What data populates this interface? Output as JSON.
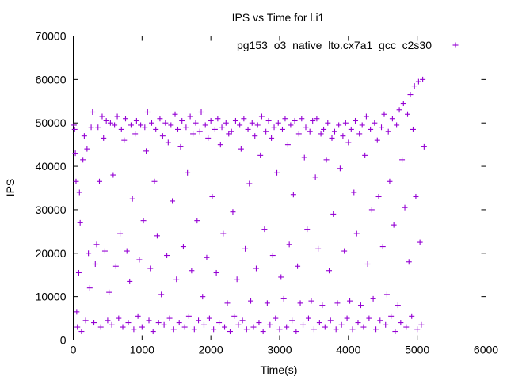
{
  "chart_data": {
    "type": "scatter",
    "title": "IPS vs Time for l.i1",
    "xlabel": "Time(s)",
    "ylabel": "IPS",
    "xlim": [
      0,
      6000
    ],
    "ylim": [
      0,
      70000
    ],
    "x_ticks": [
      "0",
      "1000",
      "2000",
      "3000",
      "4000",
      "5000",
      "6000"
    ],
    "y_ticks": [
      "0",
      "10000",
      "20000",
      "30000",
      "40000",
      "50000",
      "60000",
      "70000"
    ],
    "grid": false,
    "legend_position": "top-right",
    "marker": "+",
    "series": [
      {
        "name": "pg153_o3_native_lto.cx7a1_gcc_c2s30",
        "color": "#9400d3",
        "points": [
          [
            10,
            49500
          ],
          [
            20,
            48500
          ],
          [
            30,
            43000
          ],
          [
            40,
            36500
          ],
          [
            50,
            6500
          ],
          [
            60,
            3000
          ],
          [
            80,
            15500
          ],
          [
            90,
            34000
          ],
          [
            100,
            27000
          ],
          [
            120,
            2000
          ],
          [
            140,
            41500
          ],
          [
            160,
            47000
          ],
          [
            180,
            4500
          ],
          [
            200,
            44000
          ],
          [
            220,
            20000
          ],
          [
            240,
            12000
          ],
          [
            260,
            49000
          ],
          [
            280,
            52500
          ],
          [
            300,
            4000
          ],
          [
            320,
            17500
          ],
          [
            340,
            22000
          ],
          [
            360,
            49000
          ],
          [
            380,
            36500
          ],
          [
            400,
            3000
          ],
          [
            420,
            51500
          ],
          [
            440,
            46500
          ],
          [
            460,
            20500
          ],
          [
            480,
            50500
          ],
          [
            500,
            4500
          ],
          [
            520,
            11000
          ],
          [
            540,
            50000
          ],
          [
            560,
            3500
          ],
          [
            580,
            38000
          ],
          [
            600,
            49500
          ],
          [
            620,
            17000
          ],
          [
            640,
            51500
          ],
          [
            660,
            5000
          ],
          [
            680,
            24500
          ],
          [
            700,
            48500
          ],
          [
            720,
            3000
          ],
          [
            740,
            46000
          ],
          [
            760,
            51000
          ],
          [
            780,
            20500
          ],
          [
            800,
            4000
          ],
          [
            820,
            13500
          ],
          [
            840,
            49500
          ],
          [
            860,
            32500
          ],
          [
            880,
            2500
          ],
          [
            900,
            47500
          ],
          [
            920,
            50500
          ],
          [
            940,
            5500
          ],
          [
            960,
            18500
          ],
          [
            980,
            49500
          ],
          [
            1000,
            3000
          ],
          [
            1020,
            27500
          ],
          [
            1040,
            49000
          ],
          [
            1060,
            43500
          ],
          [
            1080,
            52500
          ],
          [
            1100,
            4500
          ],
          [
            1120,
            16500
          ],
          [
            1140,
            50000
          ],
          [
            1160,
            2000
          ],
          [
            1180,
            36500
          ],
          [
            1200,
            48500
          ],
          [
            1220,
            24000
          ],
          [
            1240,
            4000
          ],
          [
            1260,
            51000
          ],
          [
            1280,
            10500
          ],
          [
            1300,
            47000
          ],
          [
            1320,
            3500
          ],
          [
            1340,
            50000
          ],
          [
            1360,
            19500
          ],
          [
            1380,
            45500
          ],
          [
            1400,
            5000
          ],
          [
            1420,
            49500
          ],
          [
            1440,
            32000
          ],
          [
            1460,
            2500
          ],
          [
            1480,
            52000
          ],
          [
            1500,
            14000
          ],
          [
            1520,
            48500
          ],
          [
            1540,
            4000
          ],
          [
            1560,
            44500
          ],
          [
            1580,
            50500
          ],
          [
            1600,
            21500
          ],
          [
            1620,
            3000
          ],
          [
            1640,
            49000
          ],
          [
            1660,
            38500
          ],
          [
            1680,
            5500
          ],
          [
            1700,
            51500
          ],
          [
            1720,
            16000
          ],
          [
            1740,
            47500
          ],
          [
            1760,
            2500
          ],
          [
            1780,
            50000
          ],
          [
            1800,
            27500
          ],
          [
            1820,
            4500
          ],
          [
            1840,
            48000
          ],
          [
            1860,
            52500
          ],
          [
            1880,
            10000
          ],
          [
            1900,
            3500
          ],
          [
            1920,
            49500
          ],
          [
            1940,
            19000
          ],
          [
            1960,
            46500
          ],
          [
            1980,
            5000
          ],
          [
            2000,
            50500
          ],
          [
            2020,
            33000
          ],
          [
            2040,
            2500
          ],
          [
            2060,
            48500
          ],
          [
            2080,
            15500
          ],
          [
            2100,
            51000
          ],
          [
            2120,
            4000
          ],
          [
            2140,
            45000
          ],
          [
            2160,
            49000
          ],
          [
            2180,
            24500
          ],
          [
            2200,
            3000
          ],
          [
            2220,
            50000
          ],
          [
            2240,
            8500
          ],
          [
            2260,
            47500
          ],
          [
            2280,
            2000
          ],
          [
            2300,
            48000
          ],
          [
            2320,
            29500
          ],
          [
            2340,
            5500
          ],
          [
            2360,
            50500
          ],
          [
            2380,
            14000
          ],
          [
            2400,
            3500
          ],
          [
            2420,
            49500
          ],
          [
            2440,
            44000
          ],
          [
            2460,
            4500
          ],
          [
            2480,
            51000
          ],
          [
            2500,
            21000
          ],
          [
            2520,
            2500
          ],
          [
            2540,
            48500
          ],
          [
            2560,
            36000
          ],
          [
            2580,
            9000
          ],
          [
            2600,
            50000
          ],
          [
            2620,
            3000
          ],
          [
            2640,
            47000
          ],
          [
            2660,
            16500
          ],
          [
            2680,
            49500
          ],
          [
            2700,
            4000
          ],
          [
            2720,
            42500
          ],
          [
            2740,
            51500
          ],
          [
            2760,
            2000
          ],
          [
            2780,
            25500
          ],
          [
            2800,
            48000
          ],
          [
            2820,
            8500
          ],
          [
            2840,
            50500
          ],
          [
            2860,
            3500
          ],
          [
            2880,
            46500
          ],
          [
            2900,
            19500
          ],
          [
            2920,
            49000
          ],
          [
            2940,
            5000
          ],
          [
            2960,
            38500
          ],
          [
            2980,
            50000
          ],
          [
            3000,
            2500
          ],
          [
            3020,
            14500
          ],
          [
            3040,
            48500
          ],
          [
            3060,
            9500
          ],
          [
            3080,
            51000
          ],
          [
            3100,
            3000
          ],
          [
            3120,
            45000
          ],
          [
            3140,
            22000
          ],
          [
            3160,
            49500
          ],
          [
            3180,
            4500
          ],
          [
            3200,
            33500
          ],
          [
            3220,
            50500
          ],
          [
            3240,
            2000
          ],
          [
            3260,
            17000
          ],
          [
            3280,
            47500
          ],
          [
            3300,
            8500
          ],
          [
            3320,
            51000
          ],
          [
            3340,
            3500
          ],
          [
            3360,
            42000
          ],
          [
            3380,
            49000
          ],
          [
            3400,
            25500
          ],
          [
            3420,
            5000
          ],
          [
            3440,
            48000
          ],
          [
            3460,
            9000
          ],
          [
            3480,
            50500
          ],
          [
            3500,
            2500
          ],
          [
            3520,
            37500
          ],
          [
            3540,
            51000
          ],
          [
            3560,
            21000
          ],
          [
            3580,
            4000
          ],
          [
            3600,
            47500
          ],
          [
            3620,
            8000
          ],
          [
            3640,
            48500
          ],
          [
            3660,
            3000
          ],
          [
            3680,
            41500
          ],
          [
            3700,
            50000
          ],
          [
            3720,
            16000
          ],
          [
            3740,
            4500
          ],
          [
            3760,
            46500
          ],
          [
            3780,
            29000
          ],
          [
            3800,
            48000
          ],
          [
            3820,
            2500
          ],
          [
            3840,
            8500
          ],
          [
            3860,
            49500
          ],
          [
            3880,
            39500
          ],
          [
            3900,
            3500
          ],
          [
            3920,
            47000
          ],
          [
            3940,
            20500
          ],
          [
            3960,
            50000
          ],
          [
            3980,
            5000
          ],
          [
            4000,
            45500
          ],
          [
            4020,
            9000
          ],
          [
            4040,
            48500
          ],
          [
            4060,
            2500
          ],
          [
            4080,
            34000
          ],
          [
            4100,
            50500
          ],
          [
            4120,
            24500
          ],
          [
            4140,
            4000
          ],
          [
            4160,
            47500
          ],
          [
            4180,
            8000
          ],
          [
            4200,
            49500
          ],
          [
            4220,
            3000
          ],
          [
            4240,
            42500
          ],
          [
            4260,
            51500
          ],
          [
            4280,
            17500
          ],
          [
            4300,
            5000
          ],
          [
            4320,
            48500
          ],
          [
            4340,
            30000
          ],
          [
            4360,
            9500
          ],
          [
            4380,
            50000
          ],
          [
            4400,
            2500
          ],
          [
            4420,
            46000
          ],
          [
            4440,
            33000
          ],
          [
            4460,
            4500
          ],
          [
            4480,
            49000
          ],
          [
            4500,
            21500
          ],
          [
            4520,
            52000
          ],
          [
            4540,
            3500
          ],
          [
            4560,
            10500
          ],
          [
            4580,
            48000
          ],
          [
            4600,
            36500
          ],
          [
            4620,
            5500
          ],
          [
            4640,
            51000
          ],
          [
            4660,
            26500
          ],
          [
            4680,
            2000
          ],
          [
            4700,
            49500
          ],
          [
            4720,
            8000
          ],
          [
            4740,
            53000
          ],
          [
            4760,
            4000
          ],
          [
            4780,
            41500
          ],
          [
            4800,
            54500
          ],
          [
            4820,
            30500
          ],
          [
            4840,
            3000
          ],
          [
            4860,
            52000
          ],
          [
            4880,
            18000
          ],
          [
            4900,
            56500
          ],
          [
            4920,
            5500
          ],
          [
            4940,
            48500
          ],
          [
            4960,
            58500
          ],
          [
            4980,
            33000
          ],
          [
            5000,
            2500
          ],
          [
            5020,
            59500
          ],
          [
            5040,
            22500
          ],
          [
            5060,
            3500
          ],
          [
            5080,
            60000
          ],
          [
            5100,
            44500
          ]
        ]
      }
    ]
  }
}
